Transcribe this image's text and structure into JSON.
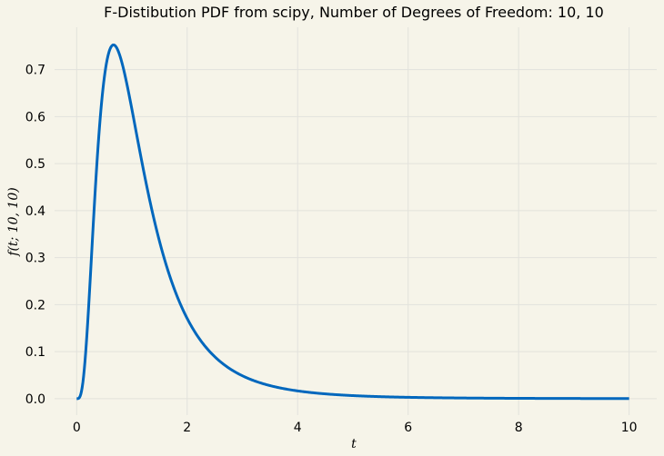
{
  "chart_data": {
    "type": "line",
    "title": "F-Distibution PDF from scipy, Number of Degrees of Freedom: 10, 10",
    "xlabel": "t",
    "ylabel": "f(t; 10, 10)",
    "xlim": [
      -0.4,
      10.5
    ],
    "ylim": [
      -0.035,
      0.79
    ],
    "xticks": [
      0,
      2,
      4,
      6,
      8,
      10
    ],
    "yticks": [
      0.0,
      0.1,
      0.2,
      0.3,
      0.4,
      0.5,
      0.6,
      0.7
    ],
    "xtick_labels": [
      "0",
      "2",
      "4",
      "6",
      "8",
      "10"
    ],
    "ytick_labels": [
      "0.0",
      "0.1",
      "0.2",
      "0.3",
      "0.4",
      "0.5",
      "0.6",
      "0.7"
    ],
    "grid": true,
    "series": [
      {
        "dfn": 10,
        "dfd": 10,
        "x_range": [
          0,
          10
        ],
        "color": "#0067bd"
      }
    ]
  },
  "colors": {
    "background": "#f6f4e9",
    "grid": "#e2e2dc",
    "line": "#0067bd"
  }
}
